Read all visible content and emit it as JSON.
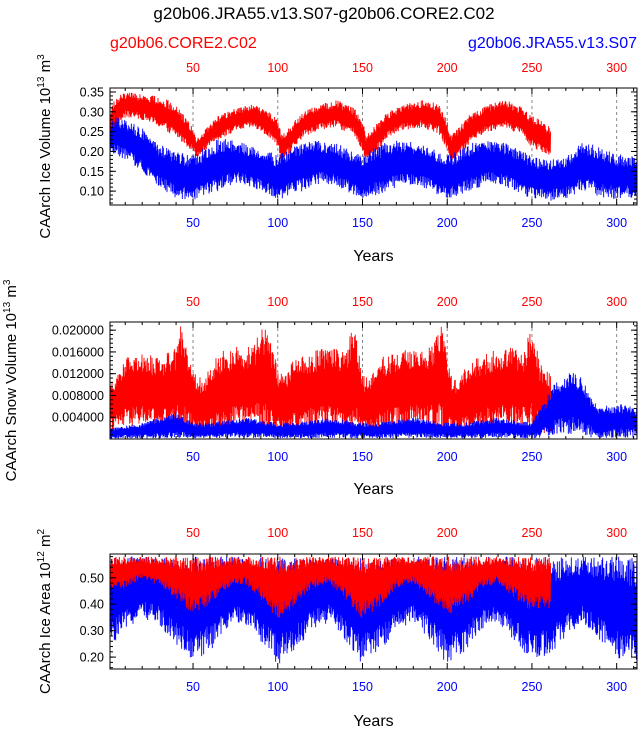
{
  "title": "g20b06.JRA55.v13.S07-g20b06.CORE2.C02",
  "legend": {
    "red_label": "g20b06.CORE2.C02",
    "blue_label": "g20b06.JRA55.v13.S07"
  },
  "colors": {
    "red": "#ff0000",
    "blue": "#0000ff",
    "ref_line": "#888888"
  },
  "chart_data": [
    {
      "type": "line",
      "ylabel": {
        "text": "CAArch Ice Volume 10",
        "exp": "13",
        "unit": "m",
        "unit_exp": "3"
      },
      "xlabel": "Years",
      "xlim": [
        1,
        312
      ],
      "ylim": [
        0.065,
        0.36
      ],
      "yticks": [
        0.1,
        0.15,
        0.2,
        0.25,
        0.3,
        0.35
      ],
      "ytick_labels": [
        "0.10",
        "0.15",
        "0.20",
        "0.25",
        "0.30",
        "0.35"
      ],
      "xticks": [
        50,
        100,
        150,
        200,
        250,
        300
      ],
      "xtick_labels": [
        "50",
        "100",
        "150",
        "200",
        "250",
        "300"
      ],
      "ref_lines": [
        50,
        100,
        150,
        200,
        250,
        300
      ],
      "series": [
        {
          "name": "g20b06.CORE2.C02",
          "color": "red",
          "x": [
            1,
            5,
            10,
            20,
            30,
            40,
            50,
            52,
            56,
            65,
            75,
            85,
            95,
            100,
            102,
            106,
            115,
            125,
            135,
            145,
            150,
            152,
            156,
            165,
            175,
            185,
            195,
            200,
            202,
            206,
            215,
            225,
            235,
            245,
            250,
            255,
            261
          ],
          "upper": [
            0.31,
            0.34,
            0.35,
            0.345,
            0.34,
            0.32,
            0.26,
            0.235,
            0.25,
            0.29,
            0.31,
            0.32,
            0.3,
            0.28,
            0.245,
            0.26,
            0.3,
            0.32,
            0.33,
            0.31,
            0.28,
            0.245,
            0.26,
            0.3,
            0.32,
            0.33,
            0.32,
            0.28,
            0.24,
            0.26,
            0.3,
            0.32,
            0.33,
            0.31,
            0.29,
            0.28,
            0.26
          ],
          "lower": [
            0.22,
            0.26,
            0.285,
            0.28,
            0.26,
            0.235,
            0.2,
            0.185,
            0.2,
            0.23,
            0.25,
            0.26,
            0.235,
            0.205,
            0.175,
            0.19,
            0.235,
            0.255,
            0.26,
            0.24,
            0.2,
            0.175,
            0.185,
            0.235,
            0.255,
            0.26,
            0.245,
            0.2,
            0.175,
            0.18,
            0.23,
            0.25,
            0.26,
            0.235,
            0.21,
            0.2,
            0.19
          ]
        },
        {
          "name": "g20b06.JRA55.v13.S07",
          "color": "blue",
          "x": [
            1,
            5,
            10,
            20,
            30,
            40,
            50,
            55,
            65,
            75,
            85,
            95,
            100,
            105,
            115,
            125,
            135,
            145,
            150,
            155,
            165,
            175,
            185,
            195,
            200,
            205,
            215,
            225,
            235,
            245,
            250,
            260,
            270,
            280,
            290,
            300,
            312
          ],
          "upper": [
            0.27,
            0.29,
            0.28,
            0.26,
            0.22,
            0.2,
            0.19,
            0.205,
            0.235,
            0.23,
            0.215,
            0.2,
            0.19,
            0.205,
            0.22,
            0.23,
            0.22,
            0.2,
            0.19,
            0.205,
            0.225,
            0.23,
            0.22,
            0.2,
            0.19,
            0.2,
            0.225,
            0.23,
            0.22,
            0.2,
            0.19,
            0.18,
            0.19,
            0.23,
            0.21,
            0.195,
            0.19
          ],
          "lower": [
            0.2,
            0.19,
            0.18,
            0.15,
            0.11,
            0.08,
            0.075,
            0.085,
            0.1,
            0.12,
            0.11,
            0.09,
            0.075,
            0.085,
            0.1,
            0.12,
            0.11,
            0.09,
            0.08,
            0.085,
            0.1,
            0.12,
            0.11,
            0.09,
            0.08,
            0.085,
            0.1,
            0.12,
            0.11,
            0.09,
            0.08,
            0.075,
            0.08,
            0.1,
            0.085,
            0.08,
            0.085
          ]
        }
      ]
    },
    {
      "type": "line",
      "ylabel": {
        "text": "CAArch Snow Volume 10",
        "exp": "13",
        "unit": "m",
        "unit_exp": "3"
      },
      "xlabel": "Years",
      "xlim": [
        1,
        312
      ],
      "ylim": [
        0,
        0.0215
      ],
      "yticks": [
        0.004,
        0.008,
        0.012,
        0.016,
        0.02
      ],
      "ytick_labels": [
        "0.004000",
        "0.008000",
        "0.012000",
        "0.016000",
        "0.020000"
      ],
      "xticks": [
        50,
        100,
        150,
        200,
        250,
        300
      ],
      "xtick_labels": [
        "50",
        "100",
        "150",
        "200",
        "250",
        "300"
      ],
      "ref_lines": [
        50,
        100,
        150,
        200,
        250,
        300
      ],
      "series": [
        {
          "name": "g20b06.CORE2.C02",
          "color": "red",
          "x": [
            1,
            10,
            20,
            30,
            40,
            42,
            48,
            52,
            56,
            65,
            75,
            85,
            93,
            100,
            104,
            110,
            120,
            130,
            140,
            145,
            150,
            154,
            160,
            170,
            180,
            190,
            197,
            202,
            206,
            215,
            225,
            235,
            245,
            250,
            255,
            261
          ],
          "upper": [
            0.01,
            0.015,
            0.016,
            0.015,
            0.017,
            0.0215,
            0.016,
            0.012,
            0.011,
            0.016,
            0.017,
            0.017,
            0.0215,
            0.013,
            0.012,
            0.015,
            0.016,
            0.017,
            0.016,
            0.0215,
            0.012,
            0.011,
            0.015,
            0.016,
            0.017,
            0.017,
            0.0215,
            0.012,
            0.011,
            0.015,
            0.016,
            0.017,
            0.016,
            0.0215,
            0.014,
            0.012
          ],
          "lower": [
            0.0015,
            0.002,
            0.0025,
            0.002,
            0.0015,
            0.0015,
            0.001,
            0.0005,
            0.0005,
            0.001,
            0.002,
            0.0025,
            0.001,
            0.0005,
            0.0005,
            0.001,
            0.002,
            0.0025,
            0.002,
            0.001,
            0.0005,
            0.0005,
            0.001,
            0.002,
            0.0025,
            0.002,
            0.001,
            0.0005,
            0.0005,
            0.001,
            0.002,
            0.0025,
            0.002,
            0.001,
            0.001,
            0.0005
          ]
        },
        {
          "name": "g20b06.JRA55.v13.S07",
          "color": "blue",
          "x": [
            1,
            20,
            40,
            50,
            60,
            80,
            100,
            110,
            130,
            150,
            160,
            180,
            200,
            210,
            230,
            250,
            261,
            265,
            270,
            275,
            280,
            285,
            290,
            300,
            312
          ],
          "upper": [
            0.002,
            0.003,
            0.005,
            0.003,
            0.003,
            0.004,
            0.003,
            0.003,
            0.004,
            0.003,
            0.003,
            0.004,
            0.003,
            0.003,
            0.004,
            0.003,
            0.009,
            0.011,
            0.012,
            0.013,
            0.011,
            0.008,
            0.006,
            0.0065,
            0.006
          ],
          "lower": [
            0.0001,
            0.0001,
            0.0002,
            0.0001,
            0.0001,
            0.0002,
            0.0001,
            0.0001,
            0.0002,
            0.0001,
            0.0001,
            0.0002,
            0.0001,
            0.0001,
            0.0002,
            0.0001,
            0.0005,
            0.001,
            0.001,
            0.0008,
            0.0005,
            0.0003,
            0.0002,
            0.0002,
            0.0002
          ]
        }
      ]
    },
    {
      "type": "line",
      "ylabel": {
        "text": "CAArch Ice Area 10",
        "exp": "12",
        "unit": "m",
        "unit_exp": "2"
      },
      "xlabel": "Years",
      "xlim": [
        1,
        312
      ],
      "ylim": [
        0.155,
        0.59
      ],
      "yticks": [
        0.2,
        0.3,
        0.4,
        0.5
      ],
      "ytick_labels": [
        "0.20",
        "0.30",
        "0.40",
        "0.50"
      ],
      "xticks": [
        50,
        100,
        150,
        200,
        250,
        300
      ],
      "xtick_labels": [
        "50",
        "100",
        "150",
        "200",
        "250",
        "300"
      ],
      "ref_lines": [],
      "series": [
        {
          "name": "g20b06.JRA55.v13.S07",
          "color": "blue",
          "x": [
            1,
            10,
            20,
            30,
            40,
            50,
            60,
            70,
            80,
            90,
            100,
            110,
            120,
            130,
            140,
            150,
            160,
            170,
            180,
            190,
            200,
            210,
            220,
            230,
            240,
            250,
            260,
            270,
            280,
            290,
            300,
            312
          ],
          "upper": [
            0.58,
            0.58,
            0.58,
            0.58,
            0.58,
            0.58,
            0.58,
            0.58,
            0.58,
            0.58,
            0.58,
            0.58,
            0.58,
            0.58,
            0.58,
            0.58,
            0.58,
            0.58,
            0.58,
            0.58,
            0.58,
            0.58,
            0.58,
            0.58,
            0.58,
            0.58,
            0.58,
            0.58,
            0.58,
            0.58,
            0.58,
            0.58
          ],
          "lower": [
            0.24,
            0.3,
            0.35,
            0.32,
            0.25,
            0.18,
            0.22,
            0.3,
            0.33,
            0.26,
            0.17,
            0.22,
            0.3,
            0.33,
            0.26,
            0.17,
            0.22,
            0.3,
            0.33,
            0.26,
            0.17,
            0.22,
            0.3,
            0.33,
            0.26,
            0.18,
            0.2,
            0.28,
            0.33,
            0.26,
            0.19,
            0.18
          ]
        },
        {
          "name": "g20b06.CORE2.C02",
          "color": "red",
          "x": [
            1,
            10,
            20,
            30,
            40,
            50,
            60,
            70,
            80,
            90,
            100,
            110,
            120,
            130,
            140,
            150,
            160,
            170,
            180,
            190,
            200,
            210,
            220,
            230,
            240,
            250,
            261
          ],
          "upper": [
            0.58,
            0.58,
            0.58,
            0.58,
            0.58,
            0.58,
            0.58,
            0.58,
            0.58,
            0.58,
            0.58,
            0.58,
            0.58,
            0.58,
            0.58,
            0.58,
            0.58,
            0.58,
            0.58,
            0.58,
            0.58,
            0.58,
            0.58,
            0.58,
            0.58,
            0.58,
            0.58
          ],
          "lower": [
            0.45,
            0.46,
            0.5,
            0.47,
            0.42,
            0.36,
            0.4,
            0.46,
            0.48,
            0.42,
            0.34,
            0.39,
            0.46,
            0.48,
            0.42,
            0.34,
            0.39,
            0.46,
            0.48,
            0.42,
            0.36,
            0.39,
            0.46,
            0.48,
            0.42,
            0.37,
            0.38
          ]
        }
      ]
    }
  ]
}
